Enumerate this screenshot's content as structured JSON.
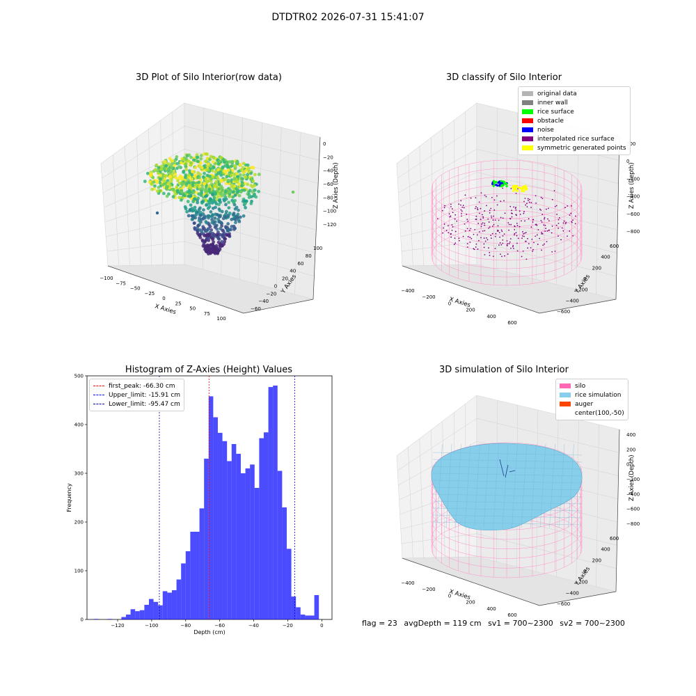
{
  "suptitle": "DTDTR02 2026-07-31 15:41:07",
  "panels": {
    "raw": {
      "title": "3D Plot of Silo Interior(row data)",
      "xlabel": "X Axies",
      "ylabel": "Y Axies",
      "zlabel": "Z Axies (Depth)",
      "xticks": [
        "−100",
        "−75",
        "−50",
        "−25",
        "0",
        "25",
        "50",
        "75",
        "100"
      ],
      "yticks": [
        "−60",
        "−40",
        "−20",
        "0",
        "20",
        "40",
        "60",
        "80",
        "100"
      ],
      "zticks": [
        "0",
        "−20",
        "−40",
        "−60",
        "−80",
        "−100",
        "−120"
      ]
    },
    "classify": {
      "title": "3D classify of Silo Interior",
      "xlabel": "X Axies",
      "ylabel": "Y Axies",
      "zlabel": "Z Axies (Depth)",
      "xticks": [
        "−400",
        "−200",
        "0",
        "200",
        "400",
        "600"
      ],
      "yticks": [
        "−600",
        "−400",
        "−200",
        "0",
        "200",
        "400",
        "600"
      ],
      "zticks": [
        "200",
        "0",
        "−200",
        "−400",
        "−600",
        "−800"
      ],
      "legend": [
        {
          "label": "original data",
          "color": "#b4b4b4"
        },
        {
          "label": "inner wall",
          "color": "#808080"
        },
        {
          "label": "rice surface",
          "color": "#00ff00"
        },
        {
          "label": "obstacle",
          "color": "#ff0000"
        },
        {
          "label": "noise",
          "color": "#0000ff"
        },
        {
          "label": "interpolated rice surface",
          "color": "#800080"
        },
        {
          "label": "symmetric generated points",
          "color": "#ffff00"
        }
      ]
    },
    "simulation": {
      "title": "3D simulation of Silo Interior",
      "xlabel": "X Axies",
      "ylabel": "Y Axies",
      "zlabel": "Z Axies (Depth)",
      "xticks": [
        "−400",
        "−200",
        "0",
        "200",
        "400",
        "600"
      ],
      "yticks": [
        "−600",
        "−400",
        "−200",
        "0",
        "200",
        "400",
        "600"
      ],
      "zticks": [
        "400",
        "200",
        "0",
        "−200",
        "−400",
        "−600",
        "−800"
      ],
      "legend": [
        {
          "label": "silo",
          "color": "#ff69b4"
        },
        {
          "label": "rice simulation",
          "color": "#87ceeb"
        },
        {
          "label": "auger",
          "color": "#ff4500"
        },
        {
          "label": "center(100,-50)",
          "color": ""
        }
      ]
    }
  },
  "chart_data": {
    "type": "bar",
    "title": "Histogram of Z-Axies (Height) Values",
    "xlabel": "Depth (cm)",
    "ylabel": "Frequency",
    "xlim": [
      -138,
      6
    ],
    "ylim": [
      0,
      500
    ],
    "xticks": [
      -120,
      -100,
      -80,
      -60,
      -40,
      -20,
      0
    ],
    "yticks": [
      0,
      100,
      200,
      300,
      400,
      500
    ],
    "bin_start": -134,
    "bin_width": 2.7,
    "values": [
      1,
      0,
      0,
      1,
      0,
      0,
      5,
      10,
      21,
      17,
      19,
      30,
      42,
      36,
      29,
      58,
      55,
      60,
      82,
      115,
      140,
      180,
      180,
      228,
      330,
      458,
      415,
      383,
      366,
      325,
      360,
      340,
      300,
      310,
      318,
      270,
      372,
      384,
      477,
      480,
      305,
      230,
      145,
      47,
      25,
      10,
      8,
      8,
      50
    ],
    "bar_color": "#0000ff",
    "vlines": [
      {
        "name": "first_peak",
        "x": -66.3,
        "label": "first_peak: -66.30 cm",
        "color": "#ff0000"
      },
      {
        "name": "upper_limit",
        "x": -15.91,
        "label": "Upper_limit: -15.91 cm",
        "color": "#0000ff"
      },
      {
        "name": "lower_limit",
        "x": -95.47,
        "label": "Lower_limit: -95.47 cm",
        "color": "#0000aa"
      }
    ],
    "legend_position": "top-left"
  },
  "footer": {
    "flag": "flag = 23",
    "avg": "avgDepth = 119 cm",
    "sv1": "sv1 = 700~2300",
    "sv2": "sv2 = 700~2300"
  }
}
